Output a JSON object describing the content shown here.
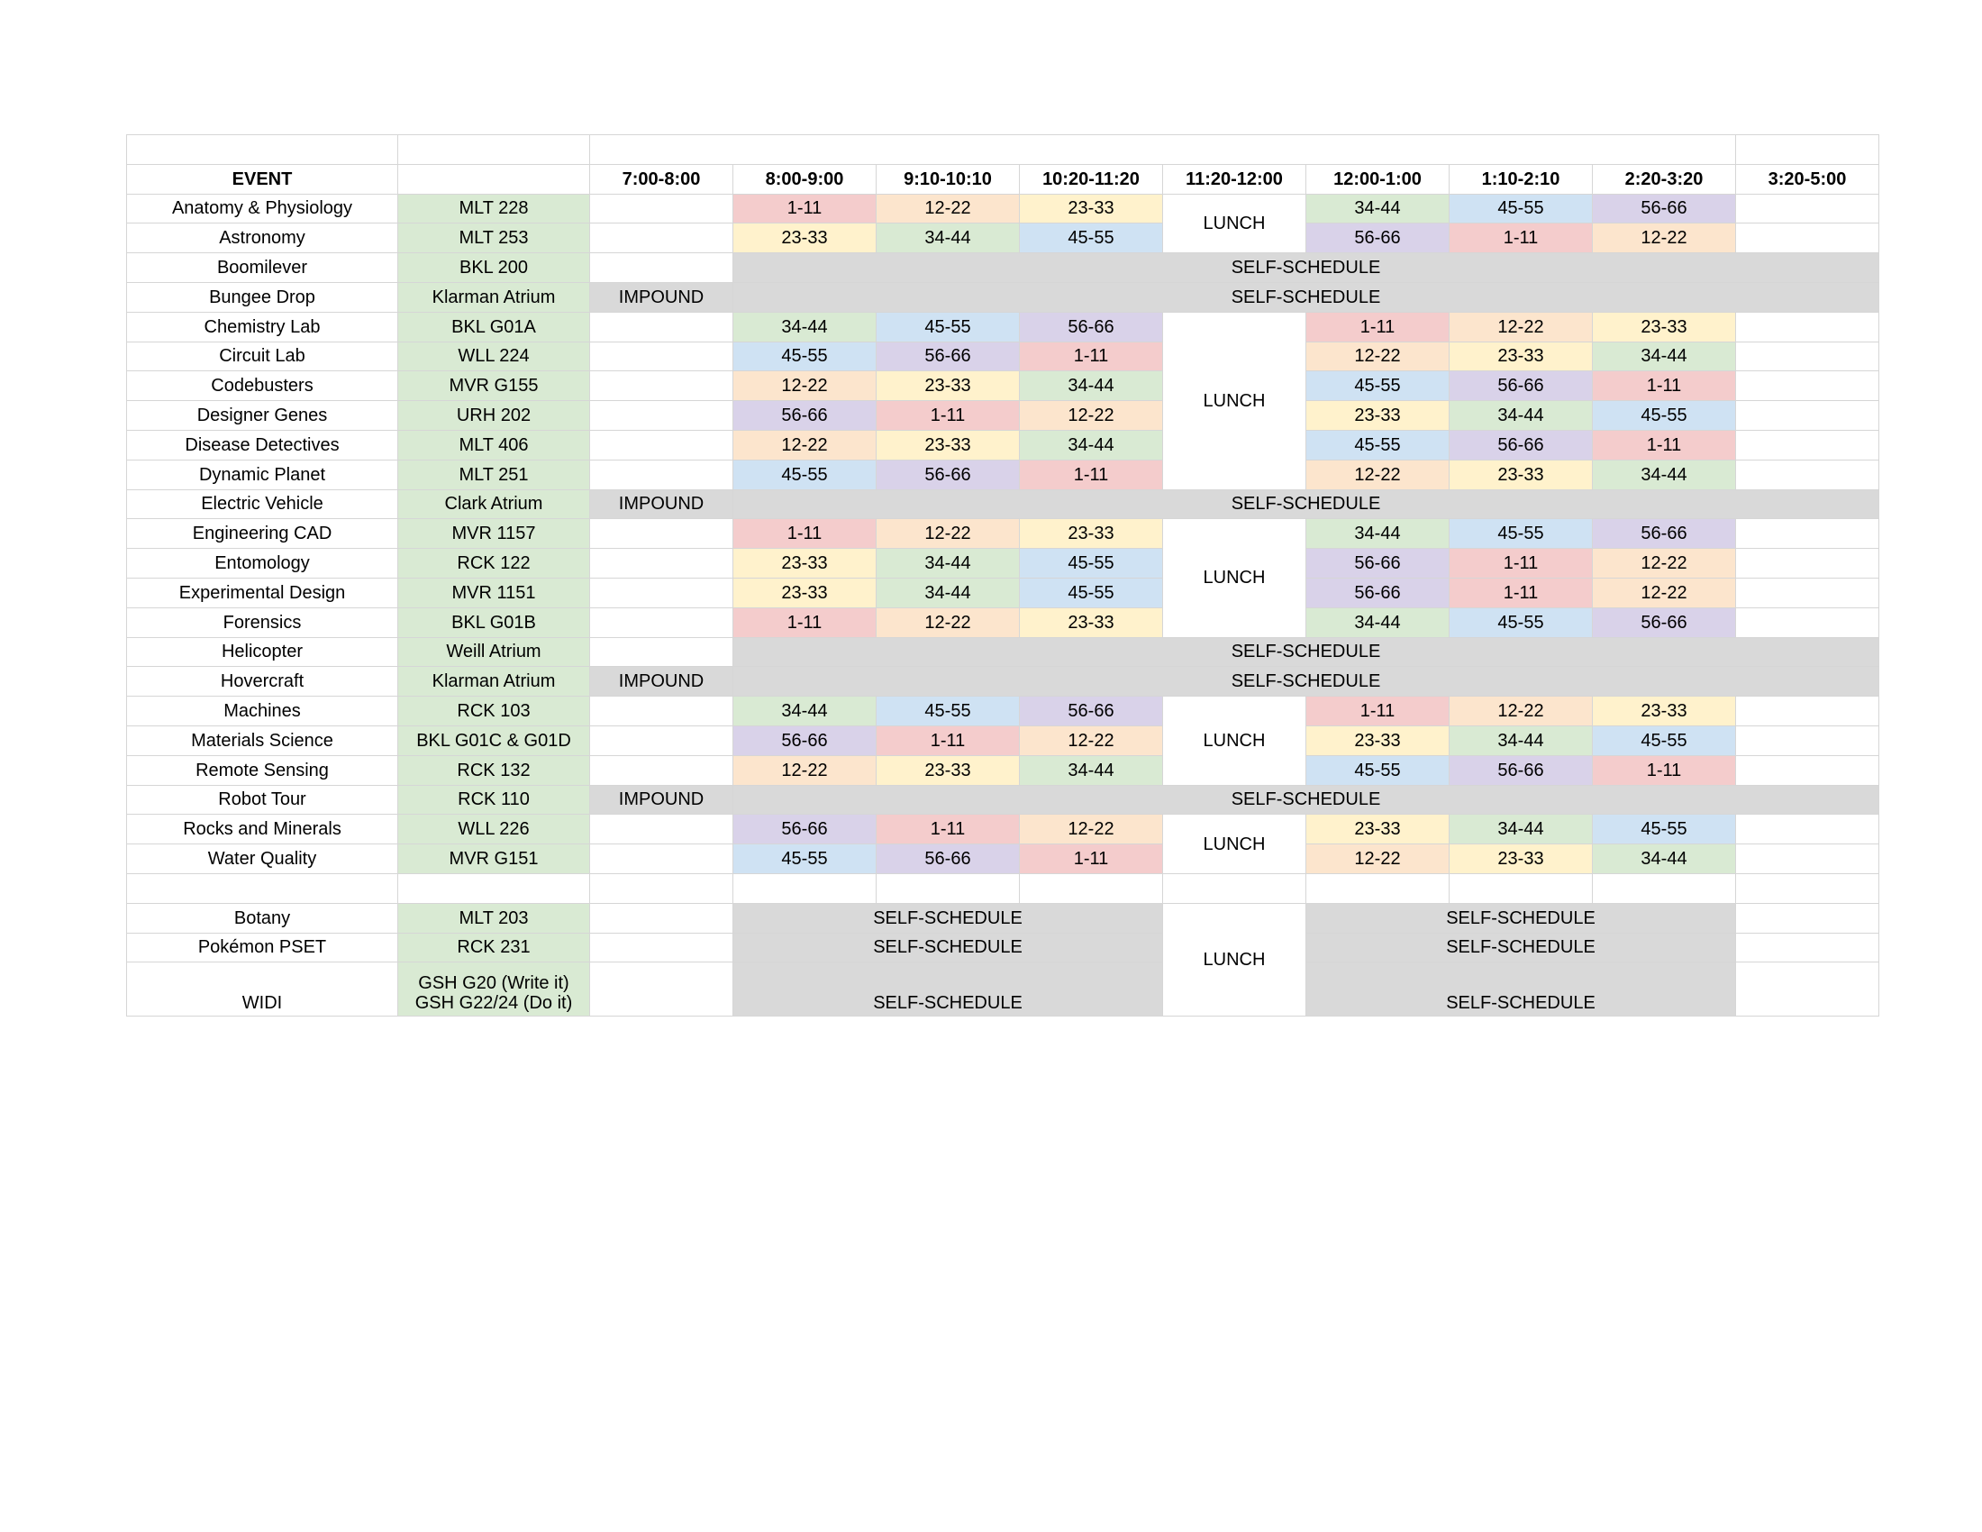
{
  "headers": {
    "event": "EVENT",
    "location": "",
    "slots": [
      "7:00-8:00",
      "8:00-9:00",
      "9:10-10:10",
      "10:20-11:20",
      "11:20-12:00",
      "12:00-1:00",
      "1:10-2:10",
      "2:20-3:20",
      "3:20-5:00"
    ]
  },
  "labels": {
    "lunch": "LUNCH",
    "self_schedule": "SELF-SCHEDULE",
    "impound": "IMPOUND"
  },
  "events": [
    {
      "name": "Anatomy & Physiology",
      "location": "MLT 228",
      "slots": [
        "1-11",
        "12-22",
        "23-33",
        "34-44",
        "45-55",
        "56-66"
      ]
    },
    {
      "name": "Astronomy",
      "location": "MLT 253",
      "slots": [
        "23-33",
        "34-44",
        "45-55",
        "56-66",
        "1-11",
        "12-22"
      ]
    },
    {
      "name": "Boomilever",
      "location": "BKL 200"
    },
    {
      "name": "Bungee Drop",
      "location": "Klarman Atrium"
    },
    {
      "name": "Chemistry Lab",
      "location": "BKL G01A",
      "slots": [
        "34-44",
        "45-55",
        "56-66",
        "1-11",
        "12-22",
        "23-33"
      ]
    },
    {
      "name": "Circuit Lab",
      "location": "WLL 224",
      "slots": [
        "45-55",
        "56-66",
        "1-11",
        "12-22",
        "23-33",
        "34-44"
      ]
    },
    {
      "name": "Codebusters",
      "location": "MVR G155",
      "slots": [
        "12-22",
        "23-33",
        "34-44",
        "45-55",
        "56-66",
        "1-11"
      ]
    },
    {
      "name": "Designer Genes",
      "location": "URH 202",
      "slots": [
        "56-66",
        "1-11",
        "12-22",
        "23-33",
        "34-44",
        "45-55"
      ]
    },
    {
      "name": "Disease Detectives",
      "location": "MLT 406",
      "slots": [
        "12-22",
        "23-33",
        "34-44",
        "45-55",
        "56-66",
        "1-11"
      ]
    },
    {
      "name": "Dynamic Planet",
      "location": "MLT 251",
      "slots": [
        "45-55",
        "56-66",
        "1-11",
        "12-22",
        "23-33",
        "34-44"
      ]
    },
    {
      "name": "Electric Vehicle",
      "location": "Clark Atrium"
    },
    {
      "name": "Engineering CAD",
      "location": "MVR 1157",
      "slots": [
        "1-11",
        "12-22",
        "23-33",
        "34-44",
        "45-55",
        "56-66"
      ]
    },
    {
      "name": "Entomology",
      "location": "RCK 122",
      "slots": [
        "23-33",
        "34-44",
        "45-55",
        "56-66",
        "1-11",
        "12-22"
      ]
    },
    {
      "name": "Experimental Design",
      "location": "MVR 1151",
      "slots": [
        "23-33",
        "34-44",
        "45-55",
        "56-66",
        "1-11",
        "12-22"
      ]
    },
    {
      "name": "Forensics",
      "location": "BKL G01B",
      "slots": [
        "1-11",
        "12-22",
        "23-33",
        "34-44",
        "45-55",
        "56-66"
      ]
    },
    {
      "name": "Helicopter",
      "location": "Weill Atrium"
    },
    {
      "name": "Hovercraft",
      "location": "Klarman Atrium"
    },
    {
      "name": "Machines",
      "location": "RCK 103",
      "slots": [
        "34-44",
        "45-55",
        "56-66",
        "1-11",
        "12-22",
        "23-33"
      ]
    },
    {
      "name": "Materials Science",
      "location": "BKL G01C & G01D",
      "slots": [
        "56-66",
        "1-11",
        "12-22",
        "23-33",
        "34-44",
        "45-55"
      ]
    },
    {
      "name": "Remote Sensing",
      "location": "RCK 132",
      "slots": [
        "12-22",
        "23-33",
        "34-44",
        "45-55",
        "56-66",
        "1-11"
      ]
    },
    {
      "name": "Robot Tour",
      "location": "RCK 110"
    },
    {
      "name": "Rocks and Minerals",
      "location": "WLL 226",
      "slots": [
        "56-66",
        "1-11",
        "12-22",
        "23-33",
        "34-44",
        "45-55"
      ]
    },
    {
      "name": "Water Quality",
      "location": "MVR G151",
      "slots": [
        "45-55",
        "56-66",
        "1-11",
        "12-22",
        "23-33",
        "34-44"
      ]
    }
  ],
  "self_scheduled_events": [
    {
      "name": "Botany",
      "location": "MLT 203"
    },
    {
      "name": "Pokémon PSET",
      "location": "RCK 231"
    },
    {
      "name": "WIDI",
      "location_lines": [
        "GSH G20 (Write it)",
        "GSH G22/24 (Do it)"
      ]
    }
  ],
  "group_colors": {
    "1-11": "#f4cccc",
    "12-22": "#fce5cd",
    "23-33": "#fff2cc",
    "34-44": "#d9ead3",
    "45-55": "#cfe2f3",
    "56-66": "#d9d2e9"
  }
}
